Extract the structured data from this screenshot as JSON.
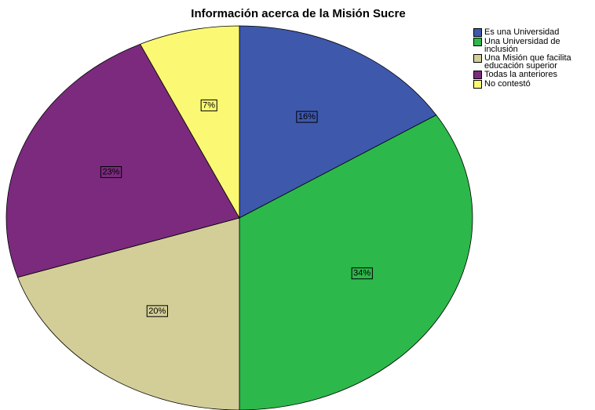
{
  "chart_data": {
    "type": "pie",
    "title": "Información acerca de la Misión Sucre",
    "categories": [
      "Es una Universidad",
      "Una Universidad de inclusión",
      "Una Misión que facilita educación superior",
      "Todas la anteriores",
      "No contestó"
    ],
    "values": [
      16,
      34,
      20,
      23,
      7
    ],
    "value_labels": [
      "16%",
      "34%",
      "20%",
      "23%",
      "7%"
    ],
    "colors": [
      "#3e58ac",
      "#2db84b",
      "#d3ce97",
      "#7b2a7e",
      "#fbf873"
    ],
    "legend": "top-right"
  }
}
